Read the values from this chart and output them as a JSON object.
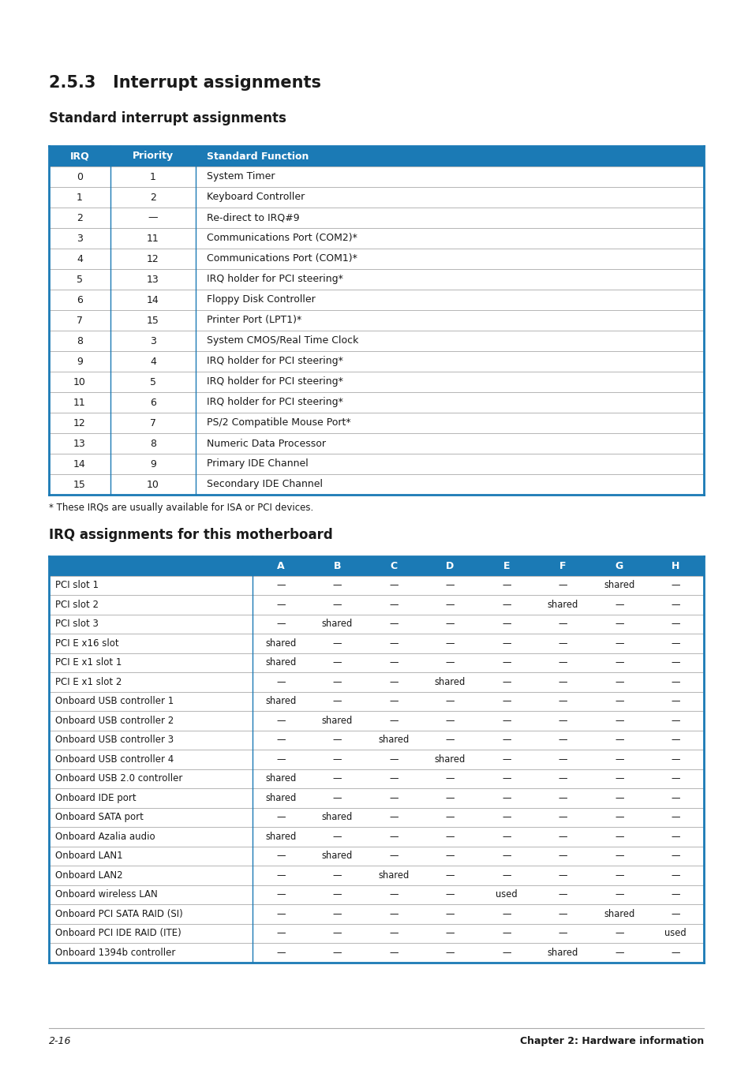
{
  "page_title": "2.5.3   Interrupt assignments",
  "subtitle1": "Standard interrupt assignments",
  "subtitle2": "IRQ assignments for this motherboard",
  "footnote": "* These IRQs are usually available for ISA or PCI devices.",
  "footer_left": "2-16",
  "footer_right": "Chapter 2: Hardware information",
  "header_color": "#1b7ab5",
  "header_text_color": "#ffffff",
  "table1_header": [
    "IRQ",
    "Priority",
    "Standard Function"
  ],
  "table1_rows": [
    [
      "0",
      "1",
      "System Timer"
    ],
    [
      "1",
      "2",
      "Keyboard Controller"
    ],
    [
      "2",
      "—",
      "Re-direct to IRQ#9"
    ],
    [
      "3",
      "11",
      "Communications Port (COM2)*"
    ],
    [
      "4",
      "12",
      "Communications Port (COM1)*"
    ],
    [
      "5",
      "13",
      "IRQ holder for PCI steering*"
    ],
    [
      "6",
      "14",
      "Floppy Disk Controller"
    ],
    [
      "7",
      "15",
      "Printer Port (LPT1)*"
    ],
    [
      "8",
      "3",
      "System CMOS/Real Time Clock"
    ],
    [
      "9",
      "4",
      "IRQ holder for PCI steering*"
    ],
    [
      "10",
      "5",
      "IRQ holder for PCI steering*"
    ],
    [
      "11",
      "6",
      "IRQ holder for PCI steering*"
    ],
    [
      "12",
      "7",
      "PS/2 Compatible Mouse Port*"
    ],
    [
      "13",
      "8",
      "Numeric Data Processor"
    ],
    [
      "14",
      "9",
      "Primary IDE Channel"
    ],
    [
      "15",
      "10",
      "Secondary IDE Channel"
    ]
  ],
  "table2_header": [
    "",
    "A",
    "B",
    "C",
    "D",
    "E",
    "F",
    "G",
    "H"
  ],
  "table2_rows": [
    [
      "PCI slot 1",
      "—",
      "—",
      "—",
      "—",
      "—",
      "—",
      "shared",
      "—"
    ],
    [
      "PCI slot 2",
      "—",
      "—",
      "—",
      "—",
      "—",
      "shared",
      "—",
      "—"
    ],
    [
      "PCI slot 3",
      "—",
      "shared",
      "—",
      "—",
      "—",
      "—",
      "—",
      "—"
    ],
    [
      "PCI E x16 slot",
      "shared",
      "—",
      "—",
      "—",
      "—",
      "—",
      "—",
      "—"
    ],
    [
      "PCI E x1 slot 1",
      "shared",
      "—",
      "—",
      "—",
      "—",
      "—",
      "—",
      "—"
    ],
    [
      "PCI E x1 slot 2",
      "—",
      "—",
      "—",
      "shared",
      "—",
      "—",
      "—",
      "—"
    ],
    [
      "Onboard USB controller 1",
      "shared",
      "—",
      "—",
      "—",
      "—",
      "—",
      "—",
      "—"
    ],
    [
      "Onboard USB controller 2",
      "—",
      "shared",
      "—",
      "—",
      "—",
      "—",
      "—",
      "—"
    ],
    [
      "Onboard USB controller 3",
      "—",
      "—",
      "shared",
      "—",
      "—",
      "—",
      "—",
      "—"
    ],
    [
      "Onboard USB controller 4",
      "—",
      "—",
      "—",
      "shared",
      "—",
      "—",
      "—",
      "—"
    ],
    [
      "Onboard USB 2.0 controller",
      "shared",
      "—",
      "—",
      "—",
      "—",
      "—",
      "—",
      "—"
    ],
    [
      "Onboard IDE port",
      "shared",
      "—",
      "—",
      "—",
      "—",
      "—",
      "—",
      "—"
    ],
    [
      "Onboard SATA port",
      "—",
      "shared",
      "—",
      "—",
      "—",
      "—",
      "—",
      "—"
    ],
    [
      "Onboard Azalia audio",
      "shared",
      "—",
      "—",
      "—",
      "—",
      "—",
      "—",
      "—"
    ],
    [
      "Onboard LAN1",
      "—",
      "shared",
      "—",
      "—",
      "—",
      "—",
      "—",
      "—"
    ],
    [
      "Onboard LAN2",
      "—",
      "—",
      "shared",
      "—",
      "—",
      "—",
      "—",
      "—"
    ],
    [
      "Onboard wireless LAN",
      "—",
      "—",
      "—",
      "—",
      "used",
      "—",
      "—",
      "—"
    ],
    [
      "Onboard PCI SATA RAID (SI)",
      "—",
      "—",
      "—",
      "—",
      "—",
      "—",
      "shared",
      "—"
    ],
    [
      "Onboard PCI IDE RAID (ITE)",
      "—",
      "—",
      "—",
      "—",
      "—",
      "—",
      "—",
      "used"
    ],
    [
      "Onboard 1394b controller",
      "—",
      "—",
      "—",
      "—",
      "—",
      "shared",
      "—",
      "—"
    ]
  ],
  "bg_color": "#ffffff",
  "border_color": "#1b7ab5",
  "text_color": "#1a1a1a",
  "cell_border_color": "#aaaaaa"
}
